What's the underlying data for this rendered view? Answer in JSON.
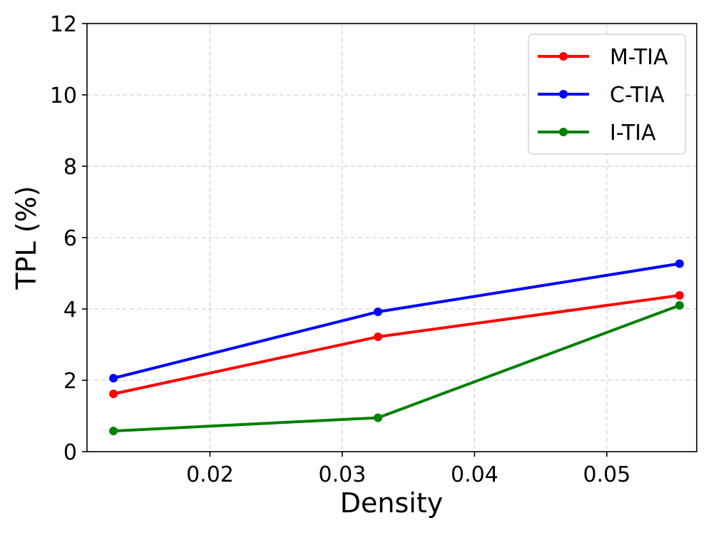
{
  "chart_data": {
    "type": "line",
    "title": "",
    "xlabel": "Density",
    "ylabel": "TPL (%)",
    "xlim": [
      0.0107,
      0.0568
    ],
    "ylim": [
      0,
      12
    ],
    "xticks": [
      0.02,
      0.03,
      0.04,
      0.05
    ],
    "xtick_labels": [
      "0.02",
      "0.03",
      "0.04",
      "0.05"
    ],
    "yticks": [
      0,
      2,
      4,
      6,
      8,
      10,
      12
    ],
    "ytick_labels": [
      "0",
      "2",
      "4",
      "6",
      "8",
      "10",
      "12"
    ],
    "x": [
      0.0127,
      0.0327,
      0.0555
    ],
    "grid": true,
    "legend_position": "top-right",
    "series": [
      {
        "name": "M-TIA",
        "color": "#ff0000",
        "values": [
          1.62,
          3.22,
          4.38
        ]
      },
      {
        "name": "C-TIA",
        "color": "#0000ff",
        "values": [
          2.06,
          3.92,
          5.27
        ]
      },
      {
        "name": "I-TIA",
        "color": "#008000",
        "values": [
          0.58,
          0.95,
          4.1
        ]
      }
    ]
  }
}
